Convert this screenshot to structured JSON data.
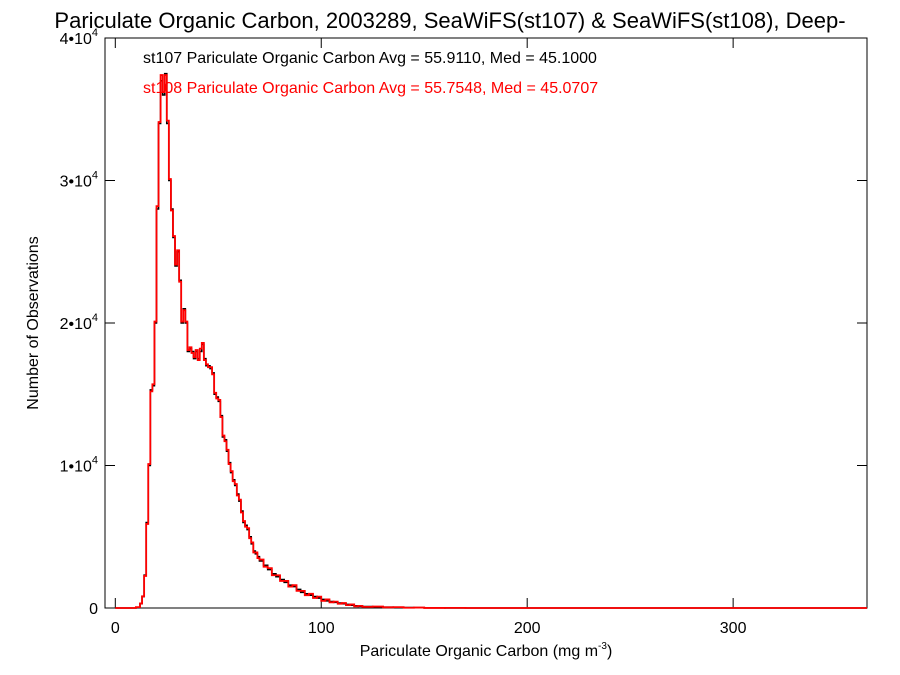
{
  "chart_data": {
    "type": "line",
    "title": "Pariculate Organic Carbon, 2003289, SeaWiFS(st107) & SeaWiFS(st108), Deep-",
    "xlabel": "Pariculate Organic Carbon (mg m",
    "xlabel_sup": "-3",
    "xlabel_suffix": ")",
    "ylabel": "Number of Observations",
    "xlim": [
      -5,
      365
    ],
    "ylim": [
      0,
      40000
    ],
    "x_ticks": [
      0,
      100,
      200,
      300
    ],
    "x_tick_labels": [
      "0",
      "100",
      "200",
      "300"
    ],
    "y_ticks": [
      0,
      10000,
      20000,
      30000,
      40000
    ],
    "y_tick_labels": [
      {
        "base": "0",
        "exp": ""
      },
      {
        "base": "1•10",
        "exp": "4"
      },
      {
        "base": "2•10",
        "exp": "4"
      },
      {
        "base": "3•10",
        "exp": "4"
      },
      {
        "base": "4•10",
        "exp": "4"
      }
    ],
    "grid": false,
    "annotations": [
      {
        "text": "st107 Pariculate Organic Carbon Avg = 55.9110, Med = 45.1000",
        "color": "#000000"
      },
      {
        "text": "st108 Pariculate Organic Carbon Avg = 55.7548, Med = 45.0707",
        "color": "#ff0000"
      }
    ],
    "series": [
      {
        "color": "#000000",
        "x": [
          0,
          10,
          12,
          13,
          14,
          15,
          16,
          17,
          18,
          19,
          20,
          21,
          22,
          23,
          24,
          25,
          26,
          27,
          28,
          29,
          30,
          31,
          32,
          33,
          34,
          35,
          36,
          37,
          38,
          39,
          40,
          41,
          42,
          43,
          44,
          45,
          46,
          47,
          48,
          49,
          50,
          51,
          52,
          53,
          54,
          55,
          56,
          57,
          58,
          59,
          60,
          61,
          62,
          63,
          64,
          65,
          66,
          67,
          68,
          69,
          70,
          72,
          74,
          76,
          78,
          80,
          82,
          84,
          86,
          88,
          90,
          92,
          94,
          96,
          98,
          100,
          102,
          104,
          106,
          108,
          110,
          112,
          114,
          116,
          118,
          120,
          125,
          130,
          135,
          140,
          145,
          150,
          160,
          170,
          180,
          190,
          200,
          210,
          220,
          230,
          240,
          260,
          280,
          300,
          320,
          340,
          360
        ],
        "values": [
          0,
          50,
          300,
          800,
          2300,
          6000,
          10000,
          15300,
          15600,
          20000,
          28000,
          34000,
          37000,
          36000,
          37500,
          34000,
          30000,
          28000,
          26000,
          24000,
          25000,
          23000,
          20000,
          21000,
          20000,
          18000,
          18200,
          18000,
          17500,
          18000,
          17500,
          18000,
          18500,
          17500,
          17000,
          17000,
          16800,
          16500,
          15000,
          14800,
          14500,
          13500,
          12000,
          11800,
          11000,
          10200,
          9500,
          9000,
          8600,
          8000,
          7500,
          6800,
          6000,
          5800,
          5500,
          5000,
          4500,
          4000,
          3800,
          3600,
          3300,
          3000,
          2700,
          2400,
          2200,
          2000,
          1800,
          1600,
          1500,
          1300,
          1100,
          1000,
          900,
          800,
          700,
          600,
          500,
          450,
          400,
          350,
          300,
          250,
          200,
          150,
          120,
          100,
          80,
          60,
          50,
          30,
          20,
          10,
          5,
          0,
          0,
          0,
          0,
          0,
          0,
          0,
          0,
          0,
          0,
          0,
          0,
          0,
          0
        ]
      },
      {
        "color": "#ff0000",
        "x": [
          0,
          10,
          12,
          13,
          14,
          15,
          16,
          17,
          18,
          19,
          20,
          21,
          22,
          23,
          24,
          25,
          26,
          27,
          28,
          29,
          30,
          31,
          32,
          33,
          34,
          35,
          36,
          37,
          38,
          39,
          40,
          41,
          42,
          43,
          44,
          45,
          46,
          47,
          48,
          49,
          50,
          51,
          52,
          53,
          54,
          55,
          56,
          57,
          58,
          59,
          60,
          61,
          62,
          63,
          64,
          65,
          66,
          67,
          68,
          69,
          70,
          72,
          74,
          76,
          78,
          80,
          82,
          84,
          86,
          88,
          90,
          92,
          94,
          96,
          98,
          100,
          102,
          104,
          106,
          108,
          110,
          112,
          114,
          116,
          118,
          120,
          125,
          130,
          135,
          140,
          145,
          150,
          160,
          170,
          180,
          190,
          200,
          210,
          220,
          230,
          240,
          260,
          280,
          300,
          320,
          340,
          360
        ],
        "values": [
          0,
          60,
          320,
          820,
          2250,
          5900,
          10100,
          15200,
          15700,
          20100,
          28200,
          34100,
          37400,
          36200,
          37400,
          34200,
          30100,
          27900,
          26100,
          24100,
          25100,
          22900,
          20100,
          20900,
          20100,
          18100,
          18300,
          17900,
          17600,
          18100,
          17400,
          18200,
          18600,
          17400,
          17100,
          16900,
          16900,
          16400,
          15100,
          14700,
          14600,
          13400,
          12100,
          11700,
          11100,
          10100,
          9600,
          8900,
          8700,
          7900,
          7600,
          6700,
          6100,
          5700,
          5600,
          4900,
          4600,
          3900,
          3900,
          3500,
          3400,
          2900,
          2800,
          2300,
          2300,
          1900,
          1900,
          1500,
          1600,
          1200,
          1200,
          900,
          1000,
          700,
          800,
          500,
          600,
          400,
          450,
          300,
          350,
          200,
          250,
          120,
          150,
          80,
          100,
          50,
          60,
          20,
          30,
          5,
          10,
          0,
          0,
          0,
          0,
          0,
          0,
          0,
          0,
          0,
          0,
          0,
          0,
          0,
          0
        ]
      }
    ]
  }
}
